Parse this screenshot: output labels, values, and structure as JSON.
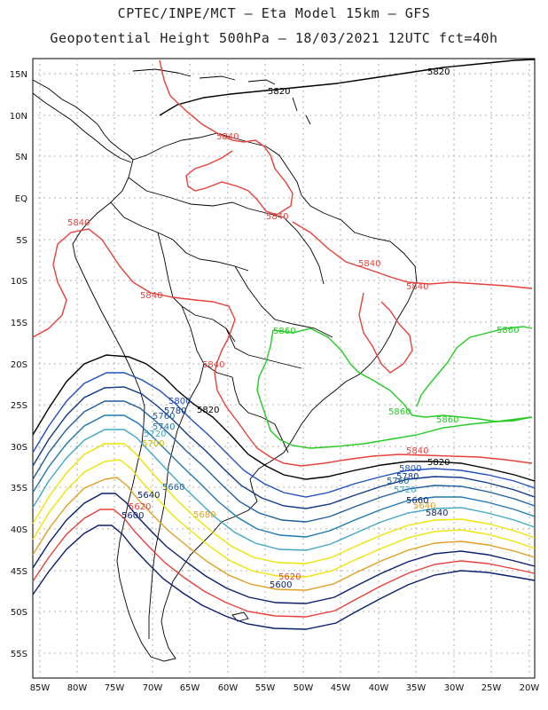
{
  "title": {
    "line1": "CPTEC/INPE/MCT –  Eta Model 15km – GFS",
    "line2": "Geopotential Height 500hPa – 18/03/2021 12UTC fct=40h"
  },
  "axes": {
    "lat_labels": [
      "15N",
      "10N",
      "5N",
      "EQ",
      "5S",
      "10S",
      "15S",
      "20S",
      "25S",
      "30S",
      "35S",
      "40S",
      "45S",
      "50S",
      "55S"
    ],
    "lon_labels": [
      "85W",
      "80W",
      "75W",
      "70W",
      "65W",
      "60W",
      "55W",
      "50W",
      "45W",
      "40W",
      "35W",
      "30W",
      "25W",
      "20W"
    ]
  },
  "contour_colors": {
    "c5600": "#0a1f6e",
    "c5620": "#e8403a",
    "c5640": "#0a1f6e",
    "c5660": "#e0a020",
    "c5680": "#f0e400",
    "c5700": "#f0e400",
    "c5720": "#40a8c8",
    "c5740": "#1f78b4",
    "c5760": "#1f5f9f",
    "c5780": "#0e3a8a",
    "c5800": "#2050c0",
    "c5820": "#000000",
    "c5840": "#e8403a",
    "c5860": "#22cc22"
  },
  "contour_labels": {
    "l5820_top_a": "5820",
    "l5820_top_b": "5820",
    "l5840_a": "5840",
    "l5840_b": "5840",
    "l5840_c": "5840",
    "l5840_d": "5840",
    "l5840_e": "5840",
    "l5840_f": "5840",
    "l5840_g": "5840",
    "l5840_h": "5840",
    "l5860_a": "5860",
    "l5860_b": "5860",
    "l5860_c": "5860",
    "l5860_d": "5860",
    "l5820_mid": "5820",
    "l5800_w": "5800",
    "l5780_w": "5780",
    "l5760_w": "5760",
    "l5740_w": "5740",
    "l5720_w": "5720",
    "l5700_w": "5700",
    "l5840_e2": "5840",
    "l5820_e": "5820",
    "l5800_e": "5800",
    "l5780_e": "5780",
    "l5760_e": "5760",
    "l5720_e": "5720",
    "l5660_e": "5660",
    "l5640_e": "5640",
    "l5640_s": "5640",
    "l5620_s": "5620",
    "l5600_s": "5600",
    "l5660_s": "5660",
    "l5680_s": "5680",
    "l5620_b": "5620",
    "l5600_b": "5600"
  }
}
